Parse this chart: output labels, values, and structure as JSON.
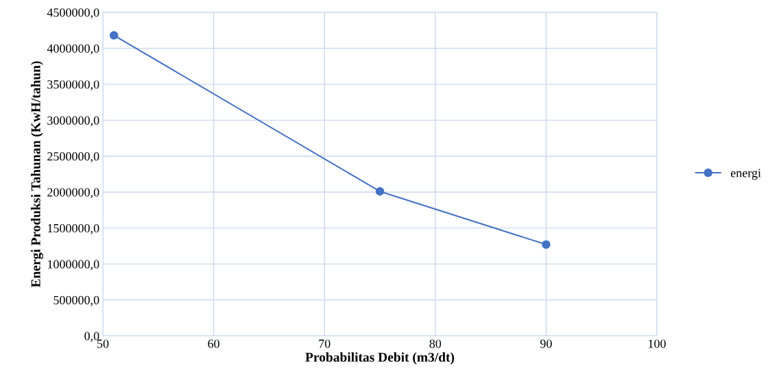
{
  "chart_data": {
    "type": "line",
    "xlabel": "Probabilitas Debit (m3/dt)",
    "ylabel": "Energi Produksi Tahunan (KwH/tahun)",
    "x": [
      51,
      75,
      90
    ],
    "series": [
      {
        "name": "energi",
        "color": "#4472c4",
        "values": [
          4180000,
          2010000,
          1270000
        ]
      }
    ],
    "xlim": [
      50,
      100
    ],
    "xticks": [
      50,
      60,
      70,
      80,
      90,
      100
    ],
    "ylim": [
      0,
      4500000
    ],
    "yticks": [
      {
        "value": 0,
        "label": "0,0"
      },
      {
        "value": 500000,
        "label": "500000,0"
      },
      {
        "value": 1000000,
        "label": "1000000,0"
      },
      {
        "value": 1500000,
        "label": "1500000,0"
      },
      {
        "value": 2000000,
        "label": "2000000,0"
      },
      {
        "value": 2500000,
        "label": "2500000,0"
      },
      {
        "value": 3000000,
        "label": "3000000,0"
      },
      {
        "value": 3500000,
        "label": "3500000,0"
      },
      {
        "value": 4000000,
        "label": "4000000,0"
      },
      {
        "value": 4500000,
        "label": "4500000,0"
      }
    ],
    "grid": true,
    "legend": "right",
    "marker": "circle",
    "line_style": "solid"
  }
}
